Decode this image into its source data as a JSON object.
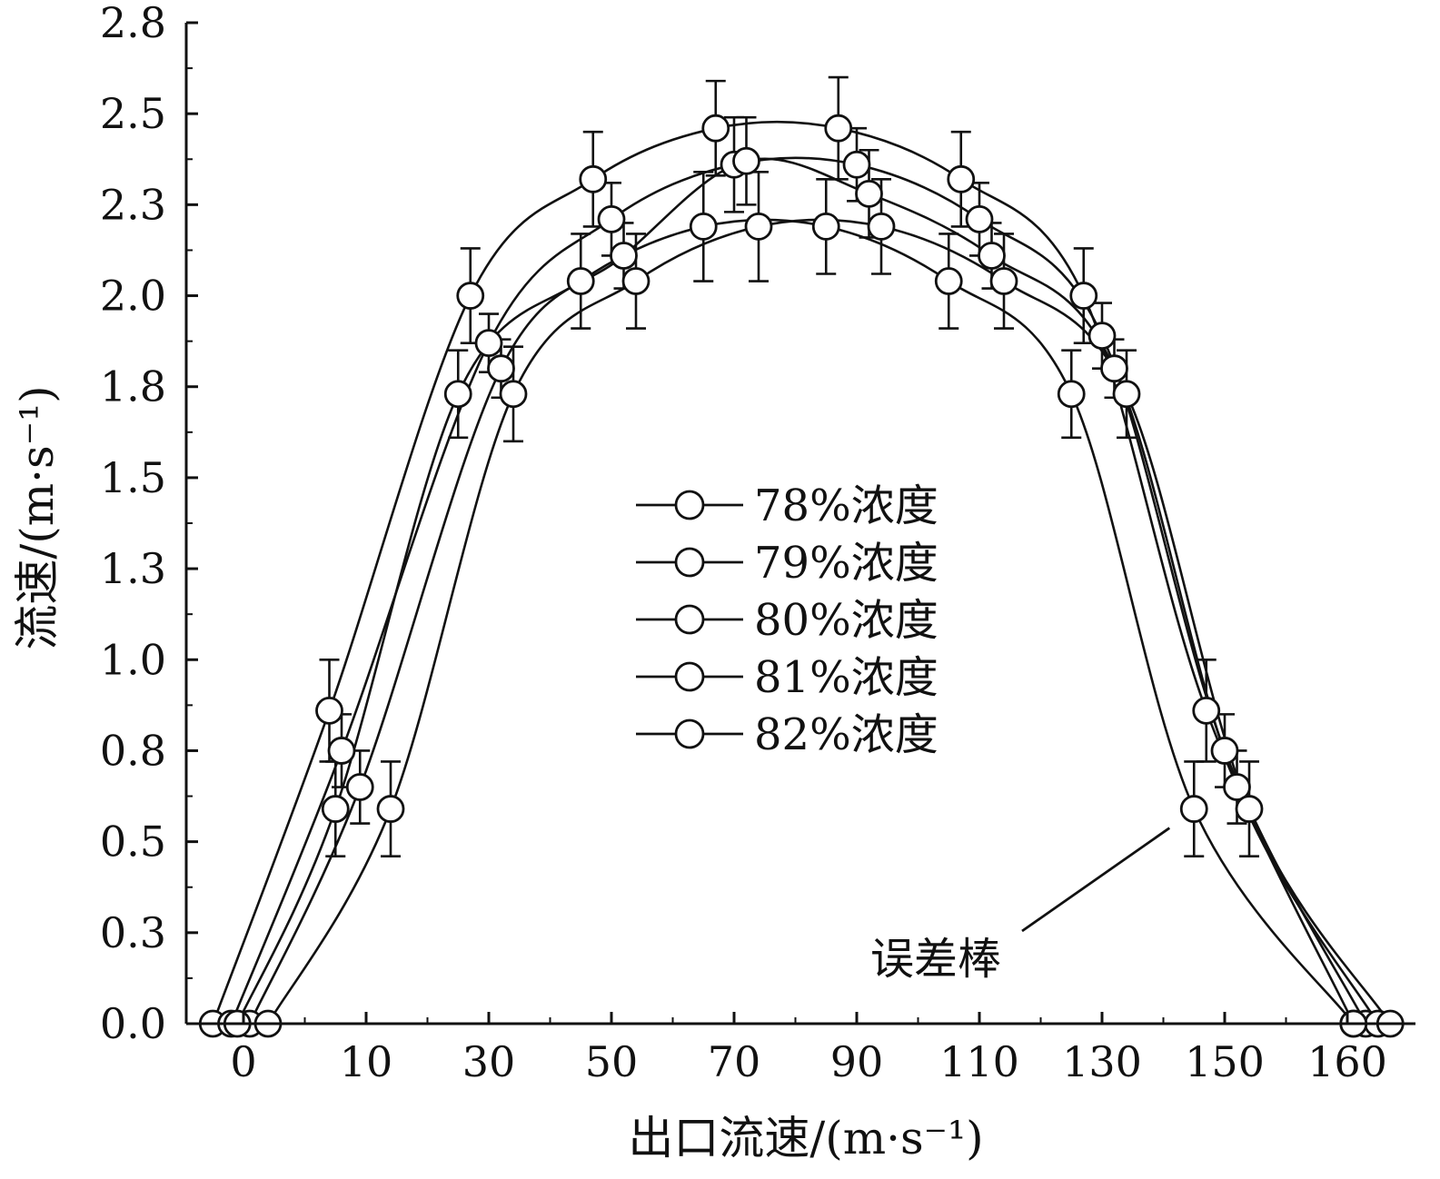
{
  "chart_data": {
    "type": "line",
    "xlabel": "出口流速/(m·s⁻¹)",
    "ylabel": "流速/(m·s⁻¹)",
    "x_ticks": [
      {
        "label": "0",
        "pos": 0
      },
      {
        "label": "10",
        "pos": 1
      },
      {
        "label": "30",
        "pos": 2
      },
      {
        "label": "50",
        "pos": 3
      },
      {
        "label": "70",
        "pos": 4
      },
      {
        "label": "90",
        "pos": 5
      },
      {
        "label": "110",
        "pos": 6
      },
      {
        "label": "130",
        "pos": 7
      },
      {
        "label": "150",
        "pos": 8
      },
      {
        "label": "160",
        "pos": 9
      }
    ],
    "xlim": [
      -0.35,
      9.35
    ],
    "ylim": [
      0,
      2.75
    ],
    "y_ticks": [
      {
        "label": "0.0",
        "value": 0
      },
      {
        "label": "0.3",
        "value": 0.25
      },
      {
        "label": "0.5",
        "value": 0.5
      },
      {
        "label": "0.8",
        "value": 0.75
      },
      {
        "label": "1.0",
        "value": 1.0
      },
      {
        "label": "1.3",
        "value": 1.25
      },
      {
        "label": "1.5",
        "value": 1.5
      },
      {
        "label": "1.8",
        "value": 1.75
      },
      {
        "label": "2.0",
        "value": 2.0
      },
      {
        "label": "2.3",
        "value": 2.25
      },
      {
        "label": "2.5",
        "value": 2.5
      },
      {
        "label": "2.8",
        "value": 2.75
      }
    ],
    "legend": {
      "position": "center"
    },
    "series": [
      {
        "name": "78%浓度",
        "points": [
          {
            "x": -0.25,
            "y": 0
          },
          {
            "x": 0.7,
            "y": 0.86,
            "err": 0.14
          },
          {
            "x": 1.85,
            "y": 2.0,
            "err": 0.13
          },
          {
            "x": 2.85,
            "y": 2.32,
            "err": 0.13
          },
          {
            "x": 3.85,
            "y": 2.46,
            "err": 0.13
          },
          {
            "x": 4.85,
            "y": 2.46,
            "err": 0.14
          },
          {
            "x": 5.85,
            "y": 2.32,
            "err": 0.13
          },
          {
            "x": 6.85,
            "y": 2.0,
            "err": 0.13
          },
          {
            "x": 7.85,
            "y": 0.86,
            "err": 0.14
          },
          {
            "x": 9.05,
            "y": 0
          }
        ]
      },
      {
        "name": "79%浓度",
        "points": [
          {
            "x": -0.1,
            "y": 0
          },
          {
            "x": 0.8,
            "y": 0.75,
            "err": 0.1
          },
          {
            "x": 2.0,
            "y": 1.87,
            "err": 0.08
          },
          {
            "x": 3.0,
            "y": 2.21,
            "err": 0.1
          },
          {
            "x": 4.0,
            "y": 2.36,
            "err": 0.13
          },
          {
            "x": 5.0,
            "y": 2.36,
            "err": 0.1
          },
          {
            "x": 6.0,
            "y": 2.21,
            "err": 0.1
          },
          {
            "x": 7.0,
            "y": 1.89,
            "err": 0.09
          },
          {
            "x": 8.0,
            "y": 0.75,
            "err": 0.1
          },
          {
            "x": 9.15,
            "y": 0
          }
        ]
      },
      {
        "name": "80%浓度",
        "points": [
          {
            "x": 0.05,
            "y": 0
          },
          {
            "x": 0.95,
            "y": 0.65,
            "err": 0.1
          },
          {
            "x": 2.1,
            "y": 1.8,
            "err": 0.08
          },
          {
            "x": 3.1,
            "y": 2.11,
            "err": 0.09
          },
          {
            "x": 4.1,
            "y": 2.37,
            "err": 0.12
          },
          {
            "x": 5.1,
            "y": 2.28,
            "err": 0.12
          },
          {
            "x": 6.1,
            "y": 2.11,
            "err": 0.09
          },
          {
            "x": 7.1,
            "y": 1.8,
            "err": 0.08
          },
          {
            "x": 8.1,
            "y": 0.65,
            "err": 0.1
          },
          {
            "x": 9.25,
            "y": 0
          }
        ]
      },
      {
        "name": "81%浓度",
        "points": [
          {
            "x": -0.05,
            "y": 0
          },
          {
            "x": 0.75,
            "y": 0.59,
            "err": 0.13
          },
          {
            "x": 1.75,
            "y": 1.73,
            "err": 0.12
          },
          {
            "x": 2.75,
            "y": 2.04,
            "err": 0.13
          },
          {
            "x": 3.75,
            "y": 2.19,
            "err": 0.15
          },
          {
            "x": 4.75,
            "y": 2.19,
            "err": 0.13
          },
          {
            "x": 5.75,
            "y": 2.04,
            "err": 0.13
          },
          {
            "x": 6.75,
            "y": 1.73,
            "err": 0.12
          },
          {
            "x": 7.75,
            "y": 0.59,
            "err": 0.13
          },
          {
            "x": 9.05,
            "y": 0
          }
        ]
      },
      {
        "name": "82%浓度",
        "points": [
          {
            "x": 0.2,
            "y": 0
          },
          {
            "x": 1.2,
            "y": 0.59,
            "err": 0.13
          },
          {
            "x": 2.2,
            "y": 1.73,
            "err": 0.13
          },
          {
            "x": 3.2,
            "y": 2.04,
            "err": 0.13
          },
          {
            "x": 4.2,
            "y": 2.19,
            "err": 0.15
          },
          {
            "x": 5.2,
            "y": 2.19,
            "err": 0.13
          },
          {
            "x": 6.2,
            "y": 2.04,
            "err": 0.13
          },
          {
            "x": 7.2,
            "y": 1.73,
            "err": 0.12
          },
          {
            "x": 8.2,
            "y": 0.59,
            "err": 0.13
          },
          {
            "x": 9.35,
            "y": 0
          }
        ]
      }
    ],
    "annotation": {
      "text": "误差棒",
      "x": 7.55,
      "y": 0.6
    }
  }
}
